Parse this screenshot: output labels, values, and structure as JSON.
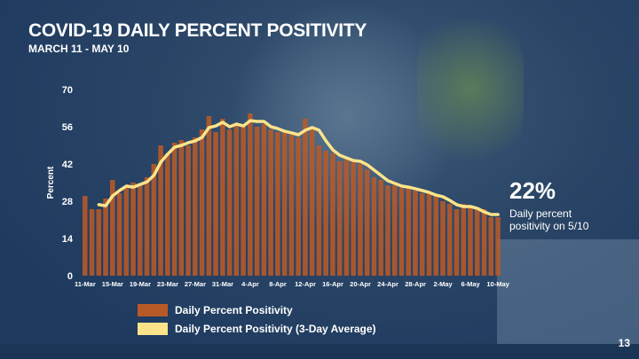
{
  "colors": {
    "bar": "#b85a28",
    "line": "#fce38a",
    "text": "#ffffff"
  },
  "chart_data": {
    "type": "bar",
    "title": "COVID-19 DAILY PERCENT POSITIVITY",
    "subtitle": "MARCH 11 - MAY 10",
    "ylabel": "Percent",
    "xlabel": "",
    "ylim": [
      0,
      70
    ],
    "yticks": [
      0,
      14,
      28,
      42,
      56,
      70
    ],
    "xticks": [
      "11-Mar",
      "15-Mar",
      "19-Mar",
      "23-Mar",
      "27-Mar",
      "31-Mar",
      "4-Apr",
      "8-Apr",
      "12-Apr",
      "16-Apr",
      "20-Apr",
      "24-Apr",
      "28-Apr",
      "2-May",
      "6-May",
      "10-May"
    ],
    "grid": false,
    "legend_position": "bottom-left",
    "series": [
      {
        "name": "Daily Percent Positivity",
        "type": "bar",
        "values": [
          30,
          25,
          25,
          29,
          36,
          31,
          34,
          35,
          34,
          37,
          42,
          49,
          46,
          50,
          51,
          49,
          52,
          55,
          60,
          54,
          59,
          55,
          57,
          57,
          61,
          56,
          57,
          55,
          54,
          54,
          53,
          52,
          59,
          56,
          49,
          47,
          46,
          43,
          44,
          43,
          42,
          40,
          37,
          36,
          34,
          34,
          33,
          33,
          32,
          31,
          31,
          30,
          28,
          27,
          25,
          27,
          26,
          25,
          25,
          22,
          22
        ]
      },
      {
        "name": "Daily Percent Positivity (3-Day Average)",
        "type": "line",
        "start_index": 2,
        "values": [
          26.7,
          26.3,
          30,
          32,
          33.7,
          33.3,
          34.3,
          35.3,
          37.7,
          42.7,
          45.7,
          48.3,
          49,
          50,
          50.7,
          52,
          55.7,
          56.3,
          57.7,
          56,
          57,
          56.3,
          58.3,
          58,
          58,
          56,
          55.3,
          54.3,
          53.7,
          53,
          54.7,
          55.7,
          54.7,
          50.7,
          47.3,
          45.3,
          44.3,
          43.3,
          43,
          41.7,
          39.7,
          37.7,
          35.7,
          34.7,
          33.7,
          33.3,
          32.7,
          32,
          31.3,
          30.3,
          29.7,
          28.3,
          26.7,
          26,
          26,
          25.3,
          24,
          23,
          23
        ]
      }
    ]
  },
  "callout": {
    "value": "22%",
    "text": "Daily percent positivity on 5/10"
  },
  "page_number": "13"
}
